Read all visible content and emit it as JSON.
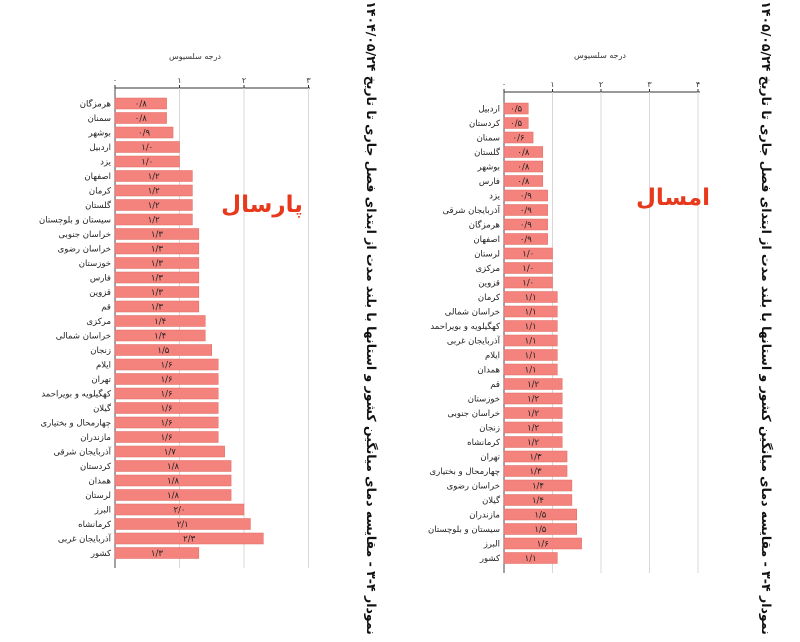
{
  "chart_data": [
    {
      "type": "bar",
      "title": "نمودار ۴-۳ - مقایسه دمای میانگین کشور و استانها با بلند مدت از ابتدای فصل جاری تا تاریخ ۱۴۰۵/۰۵/۲۴",
      "tag": "امسال",
      "xlabel": "درجه سلسیوس",
      "xlim": [
        0,
        4
      ],
      "ticks": [
        "۰",
        "۱",
        "۲",
        "۳",
        "۴"
      ],
      "categories": [
        "اردبیل",
        "کردستان",
        "سمنان",
        "گلستان",
        "بوشهر",
        "فارس",
        "یزد",
        "آذربایجان شرقی",
        "هرمزگان",
        "اصفهان",
        "لرستان",
        "مرکزی",
        "قزوین",
        "کرمان",
        "خراسان شمالی",
        "کهگیلویه و بویراحمد",
        "آذربایجان غربی",
        "ایلام",
        "همدان",
        "قم",
        "خوزستان",
        "خراسان جنوبی",
        "زنجان",
        "کرمانشاه",
        "تهران",
        "چهارمحال و بختیاری",
        "خراسان رضوی",
        "گیلان",
        "مازندران",
        "سیستان و بلوچستان",
        "البرز",
        "کشور"
      ],
      "values": [
        0.5,
        0.5,
        0.6,
        0.8,
        0.8,
        0.8,
        0.9,
        0.9,
        0.9,
        0.9,
        1.0,
        1.0,
        1.0,
        1.1,
        1.1,
        1.1,
        1.1,
        1.1,
        1.1,
        1.2,
        1.2,
        1.2,
        1.2,
        1.2,
        1.3,
        1.3,
        1.4,
        1.4,
        1.5,
        1.5,
        1.6,
        1.1
      ],
      "value_labels": [
        "۰/۵",
        "۰/۵",
        "۰/۶",
        "۰/۸",
        "۰/۸",
        "۰/۸",
        "۰/۹",
        "۰/۹",
        "۰/۹",
        "۰/۹",
        "۱/۰",
        "۱/۰",
        "۱/۰",
        "۱/۱",
        "۱/۱",
        "۱/۱",
        "۱/۱",
        "۱/۱",
        "۱/۱",
        "۱/۲",
        "۱/۲",
        "۱/۲",
        "۱/۲",
        "۱/۲",
        "۱/۳",
        "۱/۳",
        "۱/۴",
        "۱/۴",
        "۱/۵",
        "۱/۵",
        "۱/۶",
        "۱/۱"
      ],
      "bar_color": "#f4837d"
    },
    {
      "type": "bar",
      "title": "نمودار ۴-۳ - مقایسه دمای میانگین کشور و استانها با بلند مدت از ابتدای فصل جاری تا تاریخ ۱۴۰۴/۰۵/۲۴",
      "tag": "پارسال",
      "xlabel": "درجه سلسیوس",
      "xlim": [
        0,
        3
      ],
      "ticks": [
        "۰",
        "۱",
        "۲",
        "۳"
      ],
      "categories": [
        "هرمزگان",
        "سمنان",
        "بوشهر",
        "اردبیل",
        "یزد",
        "اصفهان",
        "کرمان",
        "گلستان",
        "سیستان و بلوچستان",
        "خراسان جنوبی",
        "خراسان رضوی",
        "خوزستان",
        "فارس",
        "قزوین",
        "قم",
        "مرکزی",
        "خراسان شمالی",
        "زنجان",
        "ایلام",
        "تهران",
        "کهگیلویه و بویراحمد",
        "گیلان",
        "چهارمحال و بختیاری",
        "مازندران",
        "آذربایجان شرقی",
        "کردستان",
        "همدان",
        "لرستان",
        "البرز",
        "کرمانشاه",
        "آذربایجان غربی",
        "کشور"
      ],
      "values": [
        0.8,
        0.8,
        0.9,
        1.0,
        1.0,
        1.2,
        1.2,
        1.2,
        1.2,
        1.3,
        1.3,
        1.3,
        1.3,
        1.3,
        1.3,
        1.4,
        1.4,
        1.5,
        1.6,
        1.6,
        1.6,
        1.6,
        1.6,
        1.6,
        1.7,
        1.8,
        1.8,
        1.8,
        2.0,
        2.1,
        2.3,
        1.3
      ],
      "value_labels": [
        "۰/۸",
        "۰/۸",
        "۰/۹",
        "۱/۰",
        "۱/۰",
        "۱/۲",
        "۱/۲",
        "۱/۲",
        "۱/۲",
        "۱/۳",
        "۱/۳",
        "۱/۳",
        "۱/۳",
        "۱/۳",
        "۱/۳",
        "۱/۴",
        "۱/۴",
        "۱/۵",
        "۱/۶",
        "۱/۶",
        "۱/۶",
        "۱/۶",
        "۱/۶",
        "۱/۶",
        "۱/۷",
        "۱/۸",
        "۱/۸",
        "۱/۸",
        "۲/۰",
        "۲/۱",
        "۲/۳",
        "۱/۳"
      ],
      "bar_color": "#f4837d"
    }
  ]
}
